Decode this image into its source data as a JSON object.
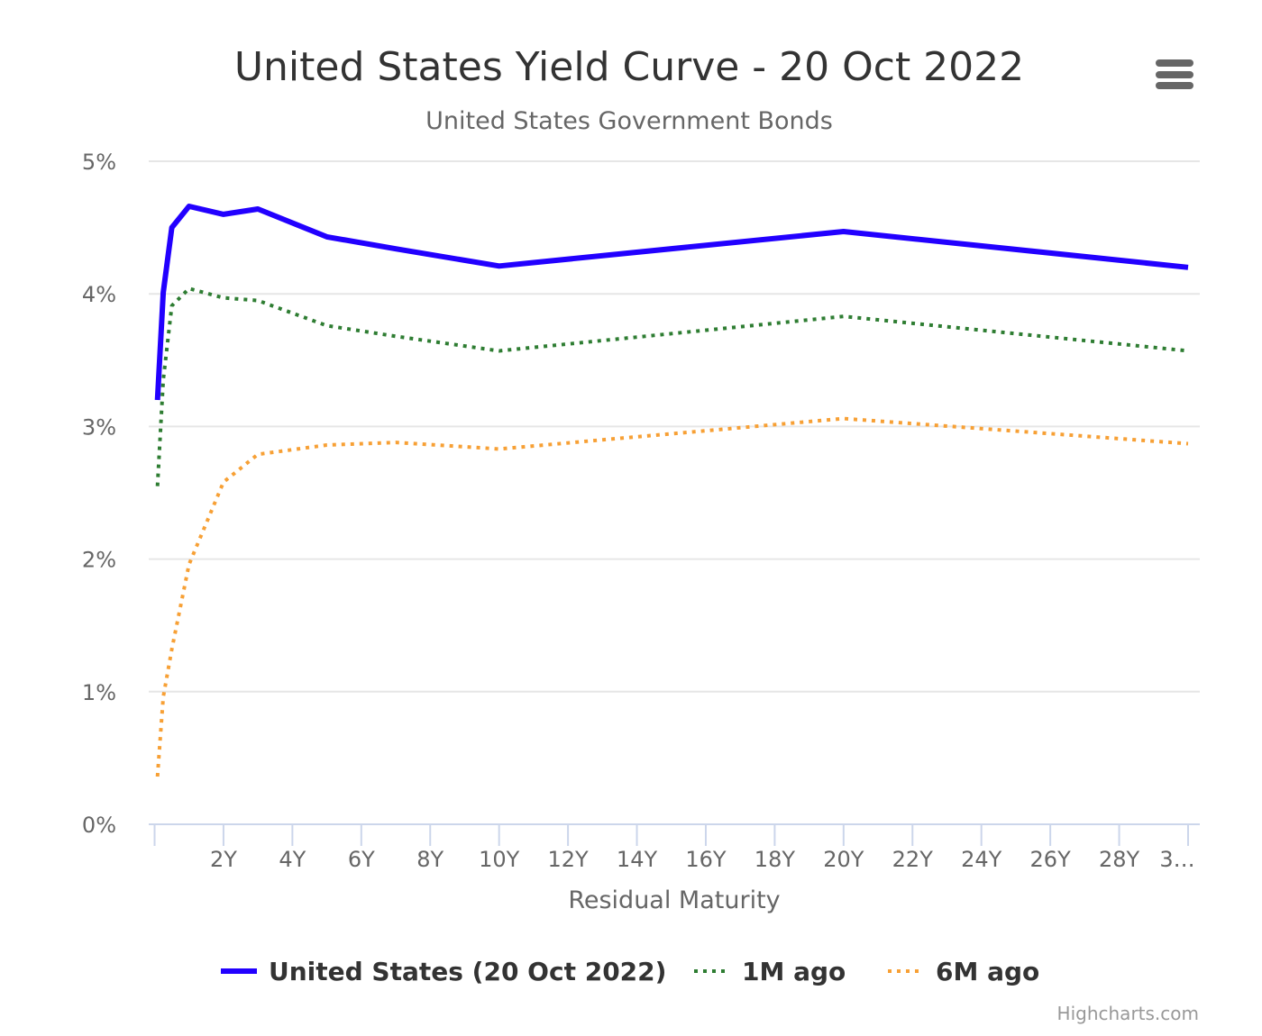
{
  "chart_data": {
    "type": "line",
    "title": "United States Yield Curve - 20 Oct 2022",
    "subtitle": "United States Government Bonds",
    "xlabel": "Residual Maturity",
    "ylabel": "",
    "xlim": [
      0,
      30
    ],
    "ylim": [
      0,
      5
    ],
    "x_tick_values": [
      2,
      4,
      6,
      8,
      10,
      12,
      14,
      16,
      18,
      20,
      22,
      24,
      26,
      28,
      30
    ],
    "x_tick_labels": [
      "2Y",
      "4Y",
      "6Y",
      "8Y",
      "10Y",
      "12Y",
      "14Y",
      "16Y",
      "18Y",
      "20Y",
      "22Y",
      "24Y",
      "26Y",
      "28Y",
      "3…"
    ],
    "y_tick_values": [
      0,
      1,
      2,
      3,
      4,
      5
    ],
    "y_tick_labels": [
      "0%",
      "1%",
      "2%",
      "3%",
      "4%",
      "5%"
    ],
    "grid": true,
    "legend_position": "bottom-center",
    "x": [
      0.083,
      0.25,
      0.5,
      1,
      2,
      3,
      5,
      7,
      10,
      20,
      30
    ],
    "series": [
      {
        "name": "United States (20 Oct 2022)",
        "color": "#2200ff",
        "style": "solid",
        "values": [
          3.2,
          4.01,
          4.5,
          4.66,
          4.6,
          4.64,
          4.43,
          4.34,
          4.21,
          4.47,
          4.2
        ]
      },
      {
        "name": "1M ago",
        "color": "#2e7d32",
        "style": "dotted",
        "values": [
          2.55,
          3.35,
          3.91,
          4.04,
          3.97,
          3.95,
          3.76,
          3.68,
          3.57,
          3.83,
          3.57
        ]
      },
      {
        "name": "6M ago",
        "color": "#f7a035",
        "style": "dotted",
        "values": [
          0.36,
          0.96,
          1.32,
          1.96,
          2.58,
          2.79,
          2.86,
          2.88,
          2.83,
          3.06,
          2.87
        ]
      }
    ]
  },
  "credits": "Highcharts.com",
  "menu_icon": "hamburger-menu-icon"
}
